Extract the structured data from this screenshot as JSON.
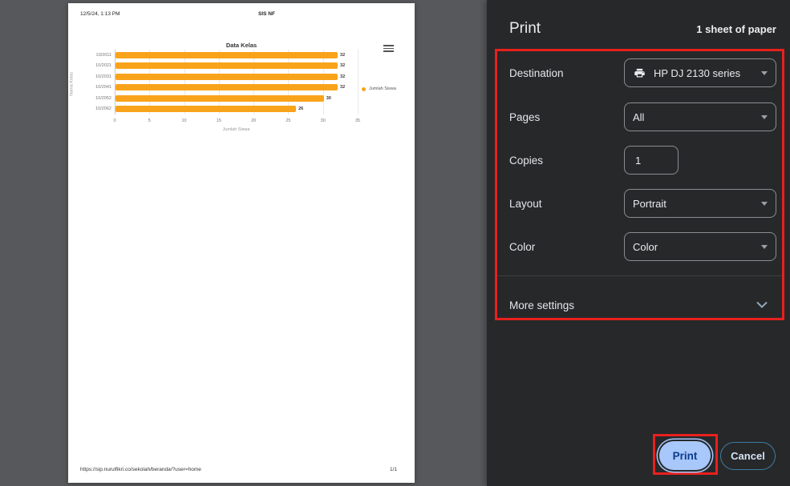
{
  "preview": {
    "header_left": "12/5/24, 1:13 PM",
    "header_center": "SIS NF",
    "footer_url": "https://sip.nurulfikri.co/sekolah/beranda/?user=home",
    "footer_page": "1/1"
  },
  "chart_data": {
    "type": "bar",
    "orientation": "horizontal",
    "title": "Data Kelas",
    "categories": [
      "10/2011",
      "10/2021",
      "10/2031",
      "10/2041",
      "10/2052",
      "10/2062"
    ],
    "values": [
      32,
      32,
      32,
      32,
      30,
      26
    ],
    "series_name": "Jumlah Siswa",
    "xlabel": "Jumlah Siswa",
    "ylabel": "Nama Kelas",
    "xlim": [
      0,
      35
    ],
    "xticks": [
      0,
      5,
      10,
      15,
      20,
      25,
      30,
      35
    ],
    "bar_color": "#F9A31B",
    "grid": true,
    "legend_position": "right"
  },
  "panel": {
    "title": "Print",
    "sheets_label": "1 sheet of paper",
    "fields": [
      {
        "label": "Destination",
        "type": "select",
        "value": "HP DJ 2130 series",
        "icon": "printer-icon"
      },
      {
        "label": "Pages",
        "type": "select",
        "value": "All"
      },
      {
        "label": "Copies",
        "type": "input",
        "value": "1"
      },
      {
        "label": "Layout",
        "type": "select",
        "value": "Portrait"
      },
      {
        "label": "Color",
        "type": "select",
        "value": "Color"
      }
    ],
    "more_settings_label": "More settings",
    "print_button": "Print",
    "cancel_button": "Cancel"
  },
  "icons": {
    "printer_icon": "printer",
    "dropdown_caret": "▾",
    "chevron_down_icon": "⌄",
    "chart_menu_icon": "≡",
    "legend_dot": "●"
  },
  "colors": {
    "annotation_red": "#E8201E",
    "bar_orange": "#F9A31B",
    "print_button_bg": "#A8C7FA",
    "print_button_text": "#0B3B8C",
    "cancel_border": "#3D7EA0",
    "panel_bg": "#27282A",
    "backdrop": "#57585B"
  }
}
